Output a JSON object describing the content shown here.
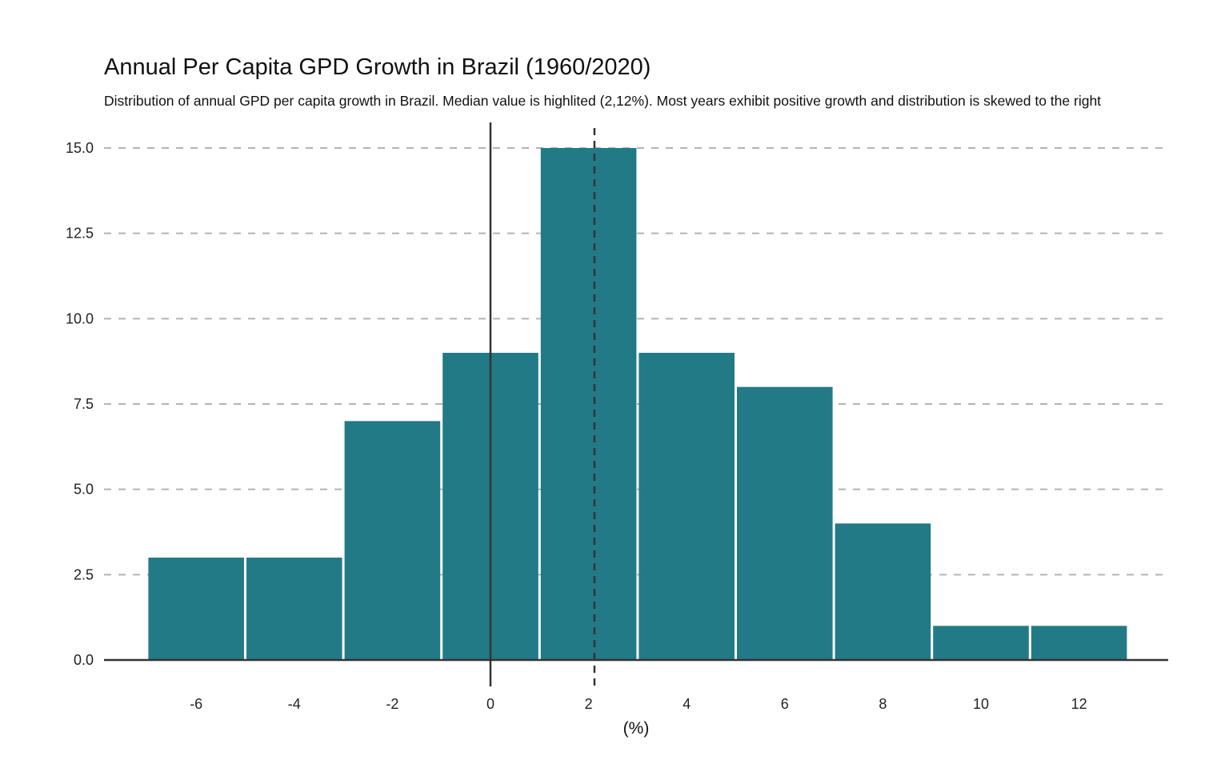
{
  "chart_data": {
    "type": "bar",
    "title": "Annual Per Capita GPD Growth in Brazil (1960/2020)",
    "subtitle": "Distribution of annual GPD per capita growth in Brazil. Median value is highlited (2,12%). Most years exhibit positive growth and distribution is skewed to the right",
    "xlabel": "(%)",
    "ylabel": "",
    "bins": [
      {
        "start": -7,
        "end": -5,
        "value": 3
      },
      {
        "start": -5,
        "end": -3,
        "value": 3
      },
      {
        "start": -3,
        "end": -1,
        "value": 7
      },
      {
        "start": -1,
        "end": 1,
        "value": 9
      },
      {
        "start": 1,
        "end": 3,
        "value": 15
      },
      {
        "start": 3,
        "end": 5,
        "value": 9
      },
      {
        "start": 5,
        "end": 7,
        "value": 8
      },
      {
        "start": 7,
        "end": 9,
        "value": 4
      },
      {
        "start": 9,
        "end": 11,
        "value": 1
      },
      {
        "start": 11,
        "end": 13,
        "value": 1
      }
    ],
    "x_ticks": [
      -6,
      -4,
      -2,
      0,
      2,
      4,
      6,
      8,
      10,
      12
    ],
    "x_tick_labels": [
      "-6",
      "-4",
      "-2",
      "0",
      "2",
      "4",
      "6",
      "8",
      "10",
      "12"
    ],
    "y_ticks": [
      0,
      2.5,
      5,
      7.5,
      10,
      12.5,
      15
    ],
    "y_tick_labels": [
      "0.0",
      "2.5",
      "5.0",
      "7.5",
      "10.0",
      "12.5",
      "15.0"
    ],
    "xlim": [
      -8,
      14
    ],
    "ylim": [
      0,
      15
    ],
    "zero_line": 0,
    "median": 2.12,
    "grid": "horizontal-dashed",
    "bar_color": "#237a87",
    "grid_color": "#b3b3b3",
    "line_color": "#333333"
  }
}
